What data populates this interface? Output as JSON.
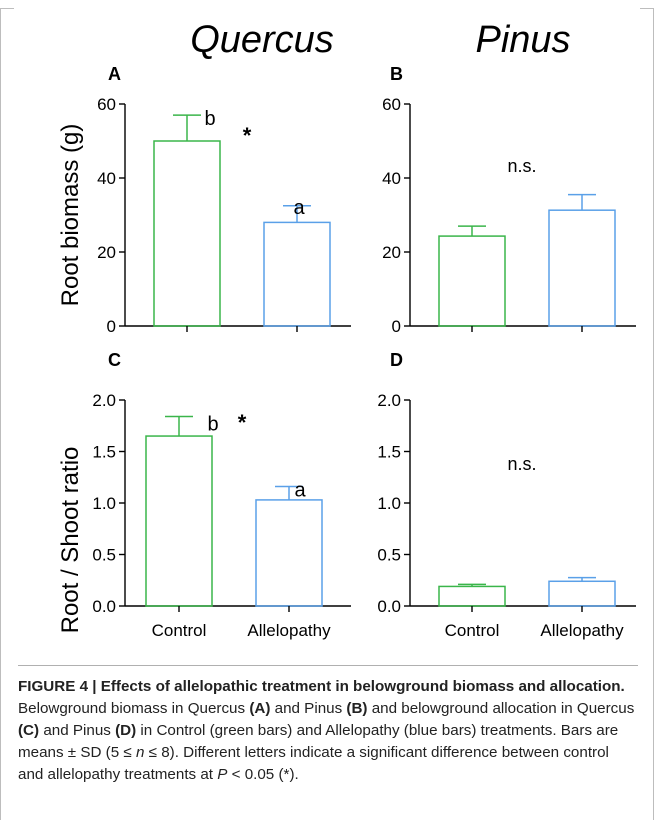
{
  "genus_left": "Quercus",
  "genus_right": "Pinus",
  "colors": {
    "control": "#3ab54a",
    "allelopathy": "#5aa0e8",
    "axis": "#000000"
  },
  "chart_data": [
    {
      "panel": "A",
      "type": "bar",
      "categories": [
        "Control",
        "Allelopathy"
      ],
      "series": [
        {
          "values": [
            50,
            28
          ],
          "errors": [
            7,
            4.5
          ]
        }
      ],
      "bar_colors": [
        "#3ab54a",
        "#5aa0e8"
      ],
      "ylabel": "Root biomass (g)",
      "ylim": [
        0,
        60
      ],
      "yticks": [
        "0",
        "20",
        "40",
        "60"
      ],
      "show_xticklabels": false,
      "letters": [
        "b",
        "a"
      ],
      "significance": "*"
    },
    {
      "panel": "B",
      "type": "bar",
      "categories": [
        "Control",
        "Allelopathy"
      ],
      "series": [
        {
          "values": [
            24.3,
            31.3
          ],
          "errors": [
            2.7,
            4.2
          ]
        }
      ],
      "bar_colors": [
        "#3ab54a",
        "#5aa0e8"
      ],
      "ylim": [
        0,
        60
      ],
      "yticks": [
        "0",
        "20",
        "40",
        "60"
      ],
      "show_xticklabels": false,
      "annotation": "n.s."
    },
    {
      "panel": "C",
      "type": "bar",
      "categories": [
        "Control",
        "Allelopathy"
      ],
      "series": [
        {
          "values": [
            1.65,
            1.03
          ],
          "errors": [
            0.19,
            0.13
          ]
        }
      ],
      "bar_colors": [
        "#3ab54a",
        "#5aa0e8"
      ],
      "ylabel": "Root / Shoot ratio",
      "ylim": [
        0,
        2.0
      ],
      "yticks": [
        "0.0",
        "0.5",
        "1.0",
        "1.5",
        "2.0"
      ],
      "show_xticklabels": true,
      "letters": [
        "b",
        "a"
      ],
      "significance": "*"
    },
    {
      "panel": "D",
      "type": "bar",
      "categories": [
        "Control",
        "Allelopathy"
      ],
      "series": [
        {
          "values": [
            0.19,
            0.24
          ],
          "errors": [
            0.02,
            0.035
          ]
        }
      ],
      "bar_colors": [
        "#3ab54a",
        "#5aa0e8"
      ],
      "ylim": [
        0,
        2.0
      ],
      "yticks": [
        "0.0",
        "0.5",
        "1.0",
        "1.5",
        "2.0"
      ],
      "show_xticklabels": true,
      "annotation": "n.s."
    }
  ],
  "caption": {
    "title": "FIGURE 4 | Effects of allelopathic treatment in belowground biomass and allocation.",
    "p1": " Belowground biomass in Quercus ",
    "refA": "(A)",
    "p2": " and Pinus ",
    "refB": "(B)",
    "p3": " and belowground allocation in Quercus ",
    "refC": "(C)",
    "p4": " and Pinus ",
    "refD": "(D)",
    "p5": " in Control (green bars) and Allelopathy (blue bars) treatments. Bars are means ± SD (5 ≤ ",
    "n": "n",
    "p6": " ≤ 8). Different letters indicate a significant difference between control and allelopathy treatments at ",
    "P": "P",
    "p7": " < 0.05 (*)."
  }
}
